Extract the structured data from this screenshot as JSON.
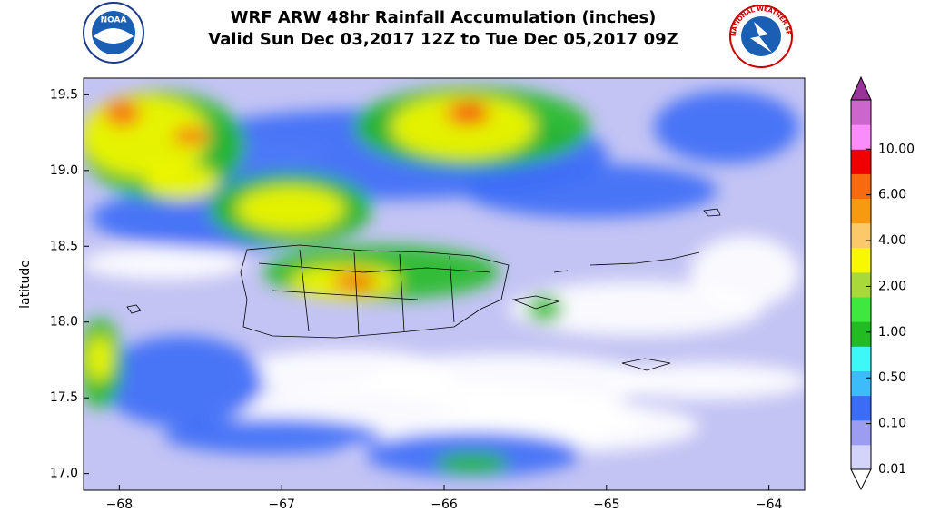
{
  "chart_data": {
    "type": "map",
    "title": "WRF ARW 48hr Rainfall Accumulation (inches)",
    "subtitle": "Valid Sun Dec 03,2017 12Z to Tue Dec 05,2017 09Z",
    "ylabel": "latitude",
    "xlim": [
      -68.22,
      -63.78
    ],
    "ylim": [
      16.89,
      19.61
    ],
    "xticks": [
      {
        "value": -68,
        "label": "−68"
      },
      {
        "value": -67,
        "label": "−67"
      },
      {
        "value": -66,
        "label": "−66"
      },
      {
        "value": -65,
        "label": "−65"
      },
      {
        "value": -64,
        "label": "−64"
      }
    ],
    "yticks": [
      {
        "value": 17,
        "label": "17.0"
      },
      17.5,
      {
        "value": 18,
        "label": "18.0"
      },
      18.5,
      {
        "value": 19,
        "label": "19.0"
      },
      19.5
    ],
    "colorbar": {
      "ticks": [
        {
          "value": 0.01,
          "label": "0.01"
        },
        {
          "value": 0.1,
          "label": "0.10"
        },
        {
          "value": 0.5,
          "label": "0.50"
        },
        {
          "value": 1,
          "label": "1.00"
        },
        {
          "value": 2,
          "label": "2.00"
        },
        {
          "value": 4,
          "label": "4.00"
        },
        {
          "value": 6,
          "label": "6.00"
        },
        {
          "value": 10,
          "label": "10.00"
        }
      ],
      "colors": [
        "#d4d4fb",
        "#9c9cf0",
        "#3a6cf6",
        "#3cbcfb",
        "#3ef8f8",
        "#22bb22",
        "#3ee83e",
        "#a8d83a",
        "#f8f800",
        "#fbc86a",
        "#f89a10",
        "#f86a10",
        "#f00000",
        "#fb8cfb",
        "#cc66cc"
      ],
      "over_color": "#993399",
      "under_color": "#ffffff"
    }
  },
  "logos": {
    "left": "NOAA",
    "right": "NATIONAL WEATHER SERVICE"
  }
}
